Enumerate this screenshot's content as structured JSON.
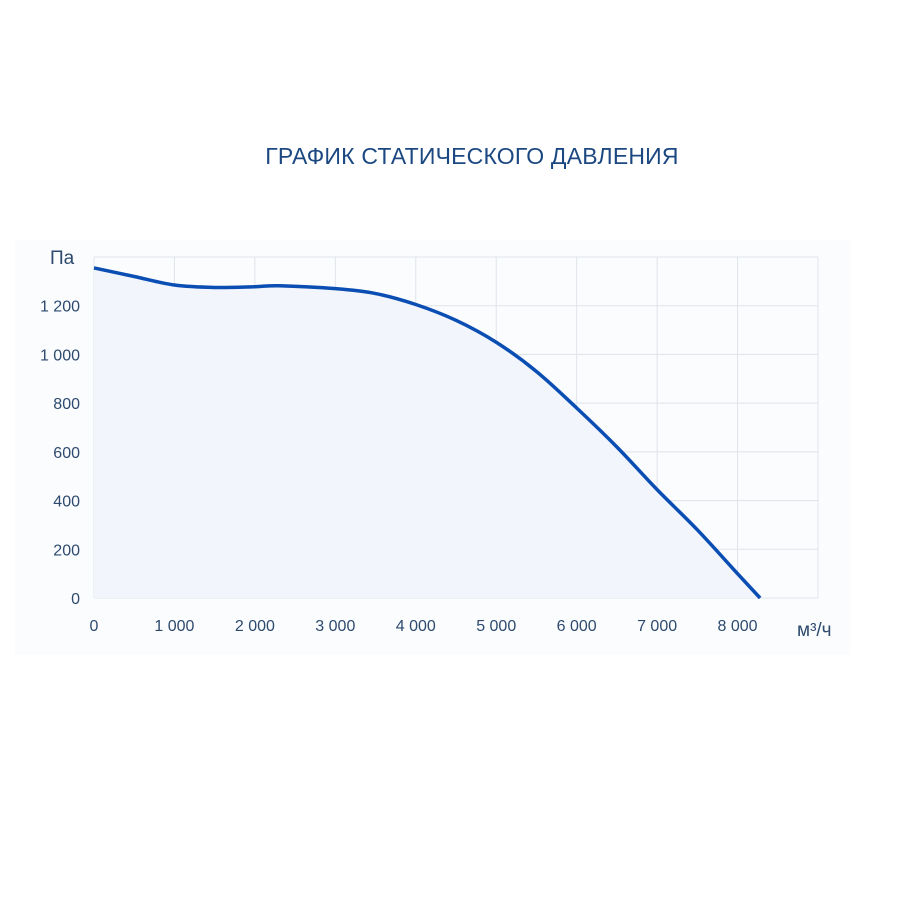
{
  "chart_data": {
    "type": "area",
    "title": "ГРАФИК СТАТИЧЕСКОГО ДАВЛЕНИЯ",
    "xlabel": "м³/ч",
    "ylabel": "Па",
    "xlim": [
      0,
      9000
    ],
    "ylim": [
      0,
      1400
    ],
    "grid": true,
    "x_ticks": [
      0,
      1000,
      2000,
      3000,
      4000,
      5000,
      6000,
      7000,
      8000
    ],
    "x_tick_labels": [
      "0",
      "1 000",
      "2 000",
      "3 000",
      "4 000",
      "5 000",
      "6 000",
      "7 000",
      "8 000"
    ],
    "y_ticks": [
      0,
      200,
      400,
      600,
      800,
      1000,
      1200
    ],
    "y_tick_labels": [
      "0",
      "200",
      "400",
      "600",
      "800",
      "1 000",
      "1 200"
    ],
    "series": [
      {
        "x": [
          0,
          500,
          1000,
          1500,
          2000,
          2300,
          3000,
          3500,
          4000,
          4500,
          5000,
          5500,
          6000,
          6500,
          7000,
          7500,
          8000,
          8280
        ],
        "y": [
          1355,
          1320,
          1285,
          1275,
          1278,
          1282,
          1270,
          1250,
          1205,
          1140,
          1050,
          930,
          780,
          620,
          445,
          280,
          100,
          0
        ]
      }
    ],
    "colors": {
      "line": "#0a4db3",
      "fill": "#f2f5fb",
      "grid": "#dfe3ea",
      "title": "#1c4882"
    }
  }
}
